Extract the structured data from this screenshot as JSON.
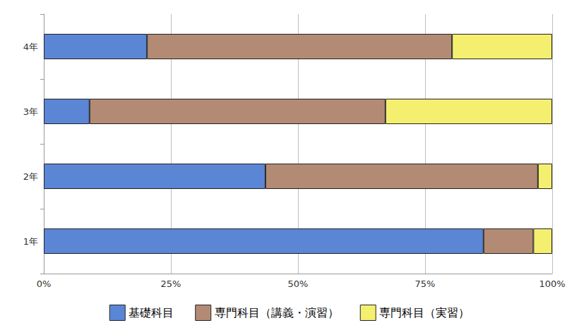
{
  "chart_data": {
    "type": "bar",
    "orientation": "horizontal",
    "stacked": true,
    "grid": true,
    "legend": "bottom",
    "categories": [
      "1年",
      "2年",
      "3年",
      "4年"
    ],
    "series": [
      {
        "name": "基礎科目",
        "color": "#5b86d6",
        "values": [
          86.5,
          43.6,
          9.0,
          20.3
        ]
      },
      {
        "name": "専門科目（講義・演習）",
        "color": "#b38b74",
        "values": [
          9.8,
          53.6,
          58.2,
          60.0
        ]
      },
      {
        "name": "専門科目（実習）",
        "color": "#f4ef6e",
        "values": [
          3.7,
          2.8,
          32.8,
          19.7
        ]
      }
    ],
    "xlim": [
      0,
      100
    ],
    "xticks": [
      {
        "value": 0,
        "label": "0%"
      },
      {
        "value": 25,
        "label": "25%"
      },
      {
        "value": 50,
        "label": "50%"
      },
      {
        "value": 75,
        "label": "75%"
      },
      {
        "value": 100,
        "label": "100%"
      }
    ]
  }
}
